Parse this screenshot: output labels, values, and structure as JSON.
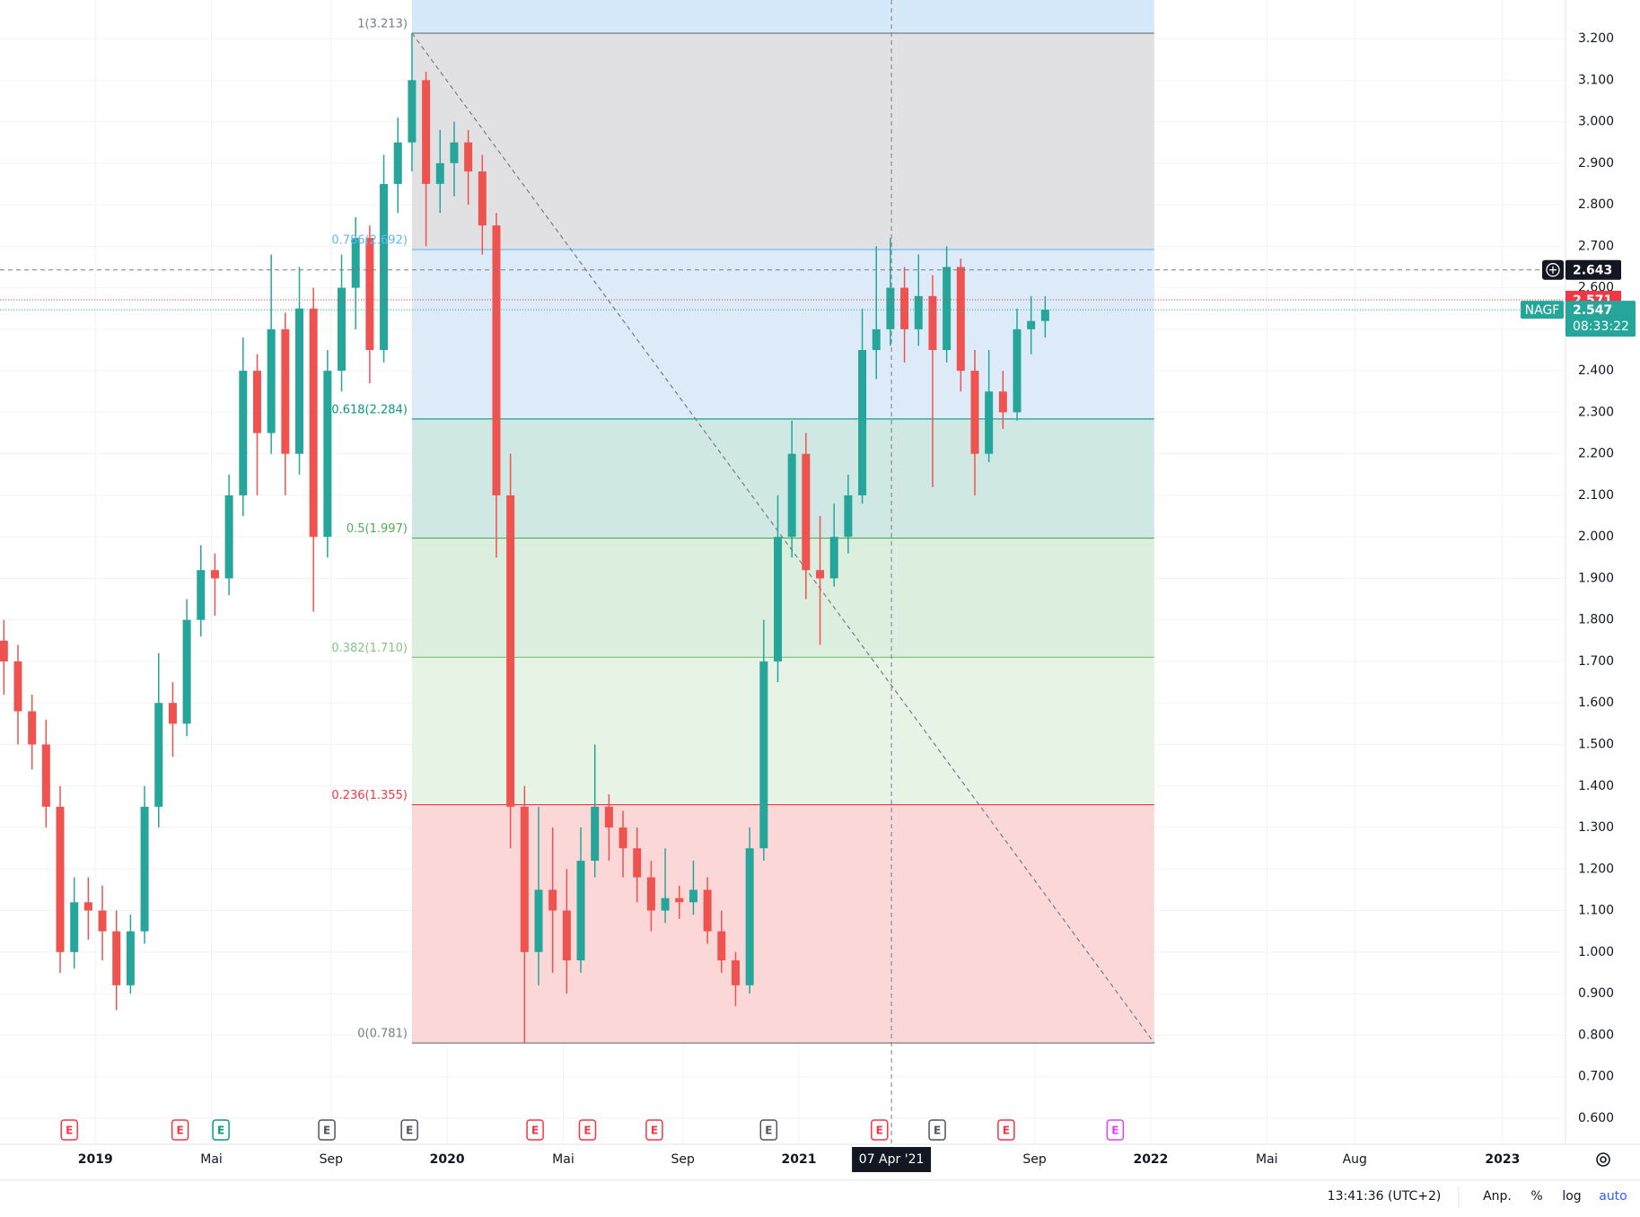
{
  "chart_data": {
    "type": "candlestick",
    "symbol": "NAGF",
    "x": [
      2018.74,
      2018.78,
      2018.82,
      2018.86,
      2018.9,
      2018.94,
      2018.98,
      2019.02,
      2019.06,
      2019.1,
      2019.14,
      2019.18,
      2019.22,
      2019.26,
      2019.3,
      2019.34,
      2019.38,
      2019.42,
      2019.46,
      2019.5,
      2019.54,
      2019.58,
      2019.62,
      2019.66,
      2019.7,
      2019.74,
      2019.78,
      2019.82,
      2019.86,
      2019.9,
      2019.94,
      2019.98,
      2020.02,
      2020.06,
      2020.1,
      2020.14,
      2020.18,
      2020.22,
      2020.26,
      2020.3,
      2020.34,
      2020.38,
      2020.42,
      2020.46,
      2020.5,
      2020.54,
      2020.58,
      2020.62,
      2020.66,
      2020.7,
      2020.74,
      2020.78,
      2020.82,
      2020.86,
      2020.9,
      2020.94,
      2020.98,
      2021.02,
      2021.06,
      2021.1,
      2021.14,
      2021.18,
      2021.22,
      2021.26,
      2021.3,
      2021.34,
      2021.38,
      2021.42,
      2021.46,
      2021.5,
      2021.54,
      2021.58,
      2021.62,
      2021.66,
      2021.7
    ],
    "open": [
      1.75,
      1.7,
      1.58,
      1.5,
      1.35,
      1.0,
      1.12,
      1.1,
      1.05,
      0.92,
      1.05,
      1.35,
      1.6,
      1.55,
      1.8,
      1.92,
      1.9,
      2.1,
      2.4,
      2.25,
      2.5,
      2.2,
      2.55,
      2.0,
      2.4,
      2.6,
      2.72,
      2.45,
      2.85,
      2.95,
      3.1,
      2.85,
      2.9,
      2.95,
      2.88,
      2.75,
      2.1,
      1.35,
      1.0,
      1.15,
      1.1,
      0.98,
      1.22,
      1.35,
      1.3,
      1.25,
      1.18,
      1.1,
      1.13,
      1.12,
      1.15,
      1.05,
      0.98,
      0.92,
      1.25,
      1.7,
      2.0,
      2.2,
      1.92,
      1.9,
      2.0,
      2.1,
      2.45,
      2.5,
      2.6,
      2.5,
      2.58,
      2.45,
      2.65,
      2.4,
      2.2,
      2.35,
      2.3,
      2.5,
      2.52
    ],
    "high": [
      1.8,
      1.74,
      1.62,
      1.56,
      1.4,
      1.18,
      1.18,
      1.16,
      1.1,
      1.09,
      1.4,
      1.72,
      1.65,
      1.85,
      1.98,
      1.96,
      2.15,
      2.48,
      2.44,
      2.68,
      2.54,
      2.65,
      2.6,
      2.45,
      2.68,
      2.77,
      2.75,
      2.92,
      3.01,
      3.213,
      3.12,
      2.98,
      3.0,
      2.98,
      2.92,
      2.78,
      2.2,
      1.4,
      1.35,
      1.3,
      1.2,
      1.3,
      1.5,
      1.38,
      1.34,
      1.3,
      1.22,
      1.25,
      1.16,
      1.22,
      1.18,
      1.1,
      1.0,
      1.3,
      1.8,
      2.1,
      2.28,
      2.25,
      2.05,
      2.08,
      2.15,
      2.55,
      2.7,
      2.72,
      2.65,
      2.68,
      2.63,
      2.7,
      2.67,
      2.45,
      2.45,
      2.4,
      2.55,
      2.58,
      2.58
    ],
    "low": [
      1.62,
      1.5,
      1.44,
      1.3,
      0.95,
      0.96,
      1.03,
      0.98,
      0.86,
      0.9,
      1.02,
      1.3,
      1.47,
      1.52,
      1.76,
      1.81,
      1.86,
      2.05,
      2.1,
      2.2,
      2.1,
      2.15,
      1.82,
      1.95,
      2.35,
      2.5,
      2.37,
      2.42,
      2.78,
      2.88,
      2.7,
      2.78,
      2.82,
      2.8,
      2.68,
      1.95,
      1.25,
      0.781,
      0.92,
      0.95,
      0.9,
      0.95,
      1.18,
      1.22,
      1.18,
      1.12,
      1.05,
      1.07,
      1.08,
      1.09,
      1.02,
      0.95,
      0.87,
      0.9,
      1.22,
      1.65,
      1.95,
      1.85,
      1.74,
      1.88,
      1.96,
      2.08,
      2.38,
      2.46,
      2.42,
      2.46,
      2.12,
      2.42,
      2.35,
      2.1,
      2.18,
      2.26,
      2.28,
      2.44,
      2.48
    ],
    "close": [
      1.7,
      1.58,
      1.5,
      1.35,
      1.0,
      1.12,
      1.1,
      1.05,
      0.92,
      1.05,
      1.35,
      1.6,
      1.55,
      1.8,
      1.92,
      1.9,
      2.1,
      2.4,
      2.25,
      2.5,
      2.2,
      2.55,
      2.0,
      2.4,
      2.6,
      2.72,
      2.45,
      2.85,
      2.95,
      3.1,
      2.85,
      2.9,
      2.95,
      2.88,
      2.75,
      2.1,
      1.35,
      1.0,
      1.15,
      1.1,
      0.98,
      1.22,
      1.35,
      1.3,
      1.25,
      1.18,
      1.1,
      1.13,
      1.12,
      1.15,
      1.05,
      0.98,
      0.92,
      1.25,
      1.7,
      2.0,
      2.2,
      1.92,
      1.9,
      2.0,
      2.1,
      2.45,
      2.5,
      2.6,
      2.5,
      2.58,
      2.45,
      2.65,
      2.4,
      2.2,
      2.35,
      2.3,
      2.5,
      2.52,
      2.547
    ],
    "up_color": "#26a69a",
    "down_color": "#ef5350",
    "xlim": [
      2018.729,
      2023.179
    ],
    "xticks": [
      2019,
      {
        "value": 2019.33,
        "label": "Mai"
      },
      {
        "value": 2019.67,
        "label": "Sep"
      },
      2020,
      {
        "value": 2020.33,
        "label": "Mai"
      },
      {
        "value": 2020.67,
        "label": "Sep"
      },
      2021,
      {
        "value": 2021.67,
        "label": "Sep"
      },
      2022,
      {
        "value": 2022.33,
        "label": "Mai"
      },
      {
        "value": 2022.58,
        "label": "Aug"
      },
      2023
    ],
    "ylim": [
      0.537,
      3.293
    ],
    "yticks": [
      {
        "value": 0.6,
        "label": "0.600"
      },
      {
        "value": 0.7,
        "label": "0.700"
      },
      {
        "value": 0.8,
        "label": "0.800"
      },
      {
        "value": 0.9,
        "label": "0.900"
      },
      {
        "value": 1.0,
        "label": "1.000"
      },
      {
        "value": 1.1,
        "label": "1.100"
      },
      {
        "value": 1.2,
        "label": "1.200"
      },
      {
        "value": 1.3,
        "label": "1.300"
      },
      {
        "value": 1.4,
        "label": "1.400"
      },
      {
        "value": 1.5,
        "label": "1.500"
      },
      {
        "value": 1.6,
        "label": "1.600"
      },
      {
        "value": 1.7,
        "label": "1.700"
      },
      {
        "value": 1.8,
        "label": "1.800"
      },
      {
        "value": 1.9,
        "label": "1.900"
      },
      {
        "value": 2.0,
        "label": "2.000"
      },
      {
        "value": 2.1,
        "label": "2.100"
      },
      {
        "value": 2.2,
        "label": "2.200"
      },
      {
        "value": 2.3,
        "label": "2.300"
      },
      {
        "value": 2.4,
        "label": "2.400"
      },
      {
        "value": 2.5,
        "label": "2.500"
      },
      {
        "value": 2.6,
        "label": "2.600"
      },
      {
        "value": 2.7,
        "label": "2.700"
      },
      {
        "value": 2.8,
        "label": "2.800"
      },
      {
        "value": 2.9,
        "label": "2.900"
      },
      {
        "value": 3.0,
        "label": "3.000"
      },
      {
        "value": 3.1,
        "label": "3.100"
      },
      {
        "value": 3.2,
        "label": "3.200"
      }
    ],
    "grid": true,
    "fibonacci": {
      "x": [
        2019.9,
        2022.01
      ],
      "top_fill": "#d6e9fb",
      "levels": [
        {
          "label": "1(3.213)",
          "value": 3.213,
          "color": "#787b86",
          "fill": "#e1e1e3"
        },
        {
          "label": "0.786(2.692)",
          "value": 2.692,
          "color": "#64b5f6",
          "fill": "#ddebf9"
        },
        {
          "label": "0.618(2.284)",
          "value": 2.284,
          "color": "#089981",
          "fill": "#cfe8e3"
        },
        {
          "label": "0.5(1.997)",
          "value": 1.997,
          "color": "#4caf50",
          "fill": "#dceedd"
        },
        {
          "label": "0.382(1.710)",
          "value": 1.71,
          "color": "#81c784",
          "fill": "#e7f3e5"
        },
        {
          "label": "0.236(1.355)",
          "value": 1.355,
          "color": "#f23645",
          "fill": "#fbd7d7"
        },
        {
          "label": "0(0.781)",
          "value": 0.781,
          "color": "#787b86"
        }
      ]
    },
    "earnings": [
      {
        "x": 2018.926,
        "label": "E",
        "color": "#f23645"
      },
      {
        "x": 2019.241,
        "label": "E",
        "color": "#f23645"
      },
      {
        "x": 2019.357,
        "label": "E",
        "color": "#089981"
      },
      {
        "x": 2019.658,
        "label": "E",
        "color": "#50535e"
      },
      {
        "x": 2019.893,
        "label": "E",
        "color": "#50535e"
      },
      {
        "x": 2020.25,
        "label": "E",
        "color": "#f23645"
      },
      {
        "x": 2020.399,
        "label": "E",
        "color": "#f23645"
      },
      {
        "x": 2020.589,
        "label": "E",
        "color": "#f23645"
      },
      {
        "x": 2020.914,
        "label": "E",
        "color": "#50535e"
      },
      {
        "x": 2021.229,
        "label": "E",
        "color": "#f23645"
      },
      {
        "x": 2021.393,
        "label": "E",
        "color": "#50535e"
      },
      {
        "x": 2021.589,
        "label": "E",
        "color": "#f23645"
      },
      {
        "x": 2021.899,
        "label": "E",
        "color": "#e040fb"
      }
    ],
    "crosshair": {
      "x": 2021.263,
      "x_label": "07 Apr '21",
      "y": 2.643
    },
    "price_lines": [
      {
        "value": 2.571,
        "color": "#f23645"
      }
    ],
    "last_price": {
      "value": 2.547,
      "countdown": "08:33:22",
      "color": "#26a69a"
    }
  },
  "status_bar": {
    "time": "13:41:36 (UTC+2)",
    "buttons": [
      "Anp.",
      "%",
      "log",
      "auto"
    ]
  }
}
